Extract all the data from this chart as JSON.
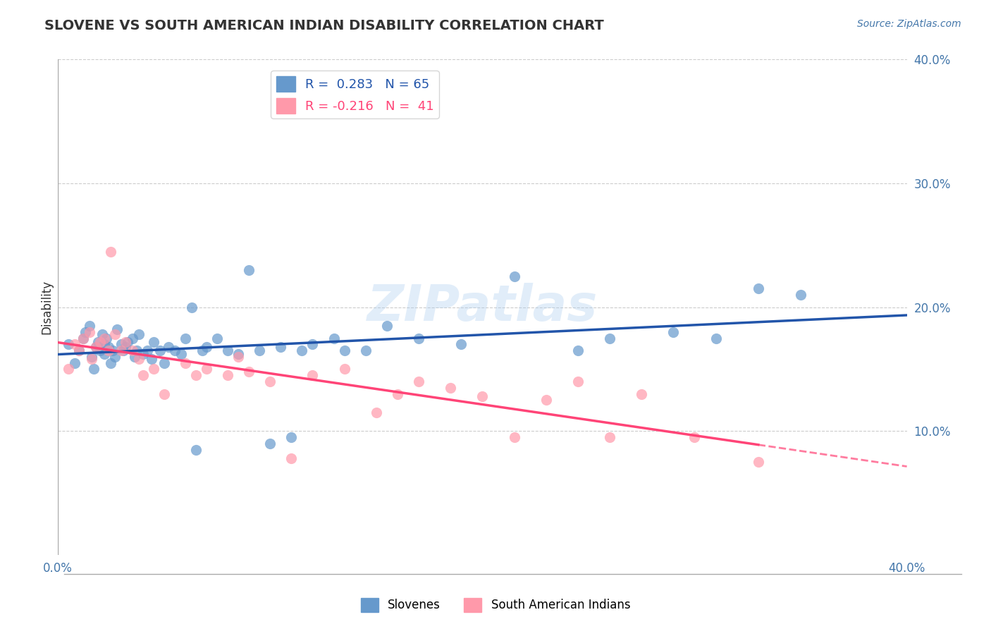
{
  "title": "SLOVENE VS SOUTH AMERICAN INDIAN DISABILITY CORRELATION CHART",
  "source": "Source: ZipAtlas.com",
  "ylabel": "Disability",
  "xlabel": "",
  "xlim": [
    0.0,
    0.4
  ],
  "ylim": [
    0.0,
    0.4
  ],
  "xticks": [
    0.0,
    0.05,
    0.1,
    0.15,
    0.2,
    0.25,
    0.3,
    0.35,
    0.4
  ],
  "yticks": [
    0.0,
    0.1,
    0.2,
    0.3,
    0.4
  ],
  "ytick_labels": [
    "",
    "10.0%",
    "20.0%",
    "30.0%",
    "40.0%"
  ],
  "xtick_labels": [
    "0.0%",
    "",
    "",
    "",
    "",
    "",
    "",
    "",
    "40.0%"
  ],
  "R_slovene": 0.283,
  "N_slovene": 65,
  "R_sai": -0.216,
  "N_sai": 41,
  "slovene_color": "#6699CC",
  "slovene_color_light": "#99BBDD",
  "sai_color": "#FF99AA",
  "sai_color_dark": "#FF6688",
  "line_slovene": "#2255AA",
  "line_sai": "#FF4477",
  "background_color": "#FFFFFF",
  "grid_color": "#CCCCCC",
  "watermark": "ZIPatlas",
  "watermark_color": "#AACCEE",
  "slovene_x": [
    0.005,
    0.008,
    0.01,
    0.012,
    0.013,
    0.015,
    0.016,
    0.017,
    0.018,
    0.019,
    0.02,
    0.021,
    0.022,
    0.022,
    0.023,
    0.024,
    0.025,
    0.026,
    0.027,
    0.028,
    0.03,
    0.031,
    0.032,
    0.033,
    0.035,
    0.036,
    0.037,
    0.038,
    0.04,
    0.042,
    0.044,
    0.045,
    0.048,
    0.05,
    0.052,
    0.055,
    0.058,
    0.06,
    0.063,
    0.065,
    0.068,
    0.07,
    0.075,
    0.08,
    0.085,
    0.09,
    0.095,
    0.1,
    0.105,
    0.11,
    0.115,
    0.12,
    0.13,
    0.135,
    0.145,
    0.155,
    0.17,
    0.19,
    0.215,
    0.245,
    0.26,
    0.29,
    0.31,
    0.33,
    0.35
  ],
  "slovene_y": [
    0.17,
    0.155,
    0.165,
    0.175,
    0.18,
    0.185,
    0.16,
    0.15,
    0.168,
    0.172,
    0.165,
    0.178,
    0.162,
    0.17,
    0.175,
    0.168,
    0.155,
    0.165,
    0.16,
    0.182,
    0.17,
    0.165,
    0.168,
    0.172,
    0.175,
    0.16,
    0.165,
    0.178,
    0.162,
    0.165,
    0.158,
    0.172,
    0.165,
    0.155,
    0.168,
    0.165,
    0.162,
    0.175,
    0.2,
    0.085,
    0.165,
    0.168,
    0.175,
    0.165,
    0.162,
    0.23,
    0.165,
    0.09,
    0.168,
    0.095,
    0.165,
    0.17,
    0.175,
    0.165,
    0.165,
    0.185,
    0.175,
    0.17,
    0.225,
    0.165,
    0.175,
    0.18,
    0.175,
    0.215,
    0.21
  ],
  "sai_x": [
    0.005,
    0.008,
    0.01,
    0.012,
    0.015,
    0.016,
    0.018,
    0.02,
    0.022,
    0.024,
    0.025,
    0.027,
    0.03,
    0.032,
    0.035,
    0.038,
    0.04,
    0.045,
    0.05,
    0.06,
    0.065,
    0.07,
    0.08,
    0.085,
    0.09,
    0.1,
    0.11,
    0.12,
    0.135,
    0.15,
    0.16,
    0.17,
    0.185,
    0.2,
    0.215,
    0.23,
    0.245,
    0.26,
    0.275,
    0.3,
    0.33
  ],
  "sai_y": [
    0.15,
    0.17,
    0.165,
    0.175,
    0.18,
    0.158,
    0.168,
    0.172,
    0.175,
    0.165,
    0.245,
    0.178,
    0.165,
    0.172,
    0.165,
    0.158,
    0.145,
    0.15,
    0.13,
    0.155,
    0.145,
    0.15,
    0.145,
    0.16,
    0.148,
    0.14,
    0.078,
    0.145,
    0.15,
    0.115,
    0.13,
    0.14,
    0.135,
    0.128,
    0.095,
    0.125,
    0.14,
    0.095,
    0.13,
    0.095,
    0.075
  ]
}
